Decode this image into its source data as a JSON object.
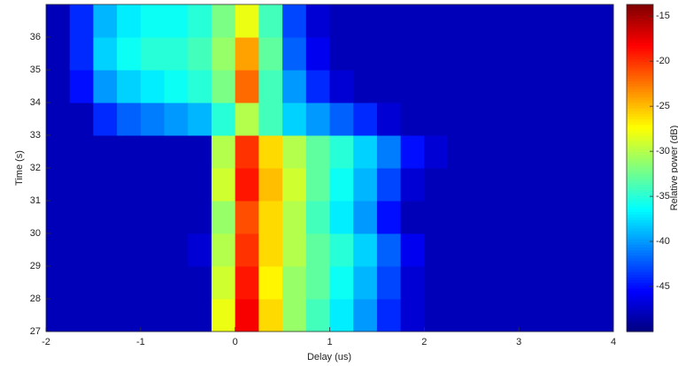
{
  "chart_data": {
    "type": "heatmap",
    "x_label": "Delay (us)",
    "y_label": "Time (s)",
    "colormap": "jet",
    "xlim": [
      -2,
      4
    ],
    "xticks": [
      -2,
      -1,
      0,
      1,
      2,
      3,
      4
    ],
    "ylim": [
      27,
      37
    ],
    "yticks": [
      27,
      28,
      29,
      30,
      31,
      32,
      33,
      34,
      35,
      36
    ],
    "x_edges": [
      -2,
      -1.75,
      -1.5,
      -1.25,
      -1,
      -0.75,
      -0.5,
      -0.25,
      0,
      0.25,
      0.5,
      0.75,
      1,
      1.25,
      1.5,
      1.75,
      2,
      2.25,
      2.5,
      2.75,
      3,
      3.25,
      3.5,
      3.75,
      4
    ],
    "y_edges": [
      27,
      28,
      29,
      30,
      31,
      32,
      33,
      34,
      35,
      36,
      37
    ],
    "z": [
      [
        -48,
        -48,
        -48,
        -48,
        -48,
        -48,
        -48,
        -28,
        -18,
        -26,
        -31,
        -34,
        -37,
        -40,
        -44,
        -47,
        -48,
        -48,
        -48,
        -48,
        -48,
        -48,
        -48,
        -48
      ],
      [
        -48,
        -48,
        -48,
        -48,
        -48,
        -48,
        -48,
        -29,
        -19,
        -27,
        -31,
        -33,
        -36,
        -39,
        -43,
        -47,
        -48,
        -48,
        -48,
        -48,
        -48,
        -48,
        -48,
        -48
      ],
      [
        -48,
        -48,
        -48,
        -48,
        -48,
        -48,
        -47,
        -30,
        -20,
        -26,
        -30,
        -33,
        -35,
        -38,
        -42,
        -46,
        -48,
        -48,
        -48,
        -48,
        -48,
        -48,
        -48,
        -48
      ],
      [
        -48,
        -48,
        -48,
        -48,
        -48,
        -48,
        -48,
        -31,
        -21,
        -26,
        -30,
        -34,
        -37,
        -40,
        -45,
        -48,
        -48,
        -48,
        -48,
        -48,
        -48,
        -48,
        -48,
        -48
      ],
      [
        -48,
        -48,
        -48,
        -48,
        -48,
        -48,
        -48,
        -29,
        -19,
        -25,
        -29,
        -33,
        -36,
        -39,
        -43,
        -47,
        -48,
        -48,
        -48,
        -48,
        -48,
        -48,
        -48,
        -48
      ],
      [
        -48,
        -48,
        -48,
        -48,
        -48,
        -48,
        -48,
        -30,
        -20,
        -26,
        -30,
        -33,
        -35,
        -38,
        -41,
        -45,
        -47,
        -48,
        -48,
        -48,
        -48,
        -48,
        -48,
        -48
      ],
      [
        -48,
        -48,
        -44,
        -42,
        -41,
        -40,
        -39,
        -35,
        -30,
        -34,
        -38,
        -40,
        -42,
        -44,
        -47,
        -48,
        -48,
        -48,
        -48,
        -48,
        -48,
        -48,
        -48,
        -48
      ],
      [
        -48,
        -45,
        -40,
        -38,
        -37,
        -36,
        -35,
        -32,
        -22,
        -34,
        -40,
        -44,
        -47,
        -48,
        -48,
        -48,
        -48,
        -48,
        -48,
        -48,
        -48,
        -48,
        -48,
        -48
      ],
      [
        -48,
        -44,
        -38,
        -36,
        -35,
        -35,
        -34,
        -31,
        -24,
        -33,
        -42,
        -46,
        -48,
        -48,
        -48,
        -48,
        -48,
        -48,
        -48,
        -48,
        -48,
        -48,
        -48,
        -48
      ],
      [
        -48,
        -44,
        -39,
        -37,
        -36,
        -36,
        -35,
        -32,
        -28,
        -34,
        -43,
        -47,
        -48,
        -48,
        -48,
        -48,
        -48,
        -48,
        -48,
        -48,
        -48,
        -48,
        -48,
        -48
      ]
    ],
    "colorbar": {
      "label": "Relative power (dB)",
      "zlim": [
        -50,
        -13.7
      ],
      "ticks": [
        -45,
        -40,
        -35,
        -30,
        -25,
        -20,
        -15
      ]
    }
  }
}
